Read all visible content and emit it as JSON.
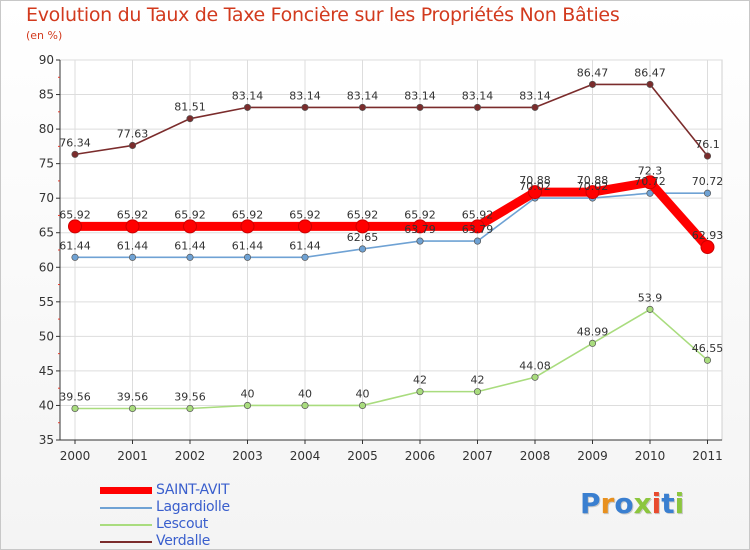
{
  "header": {
    "title": "Evolution du Taux de Taxe Foncière sur les Propriétés Non Bâties",
    "unit": "(en %)"
  },
  "logo": {
    "text": "Proxiti"
  },
  "colors": {
    "saint_avit": "#ff0000",
    "lagardiolle": "#6fa2d4",
    "lescout": "#a9dc7e",
    "verdalle": "#7b2c2c",
    "title": "#d23a1e",
    "legend_text": "#3a5fcd",
    "axis": "#333333"
  },
  "chart_data": {
    "type": "line",
    "title": "Evolution du Taux de Taxe Foncière sur les Propriétés Non Bâties",
    "ylabel": "(en %)",
    "xlabel": "",
    "ylim": [
      35,
      90
    ],
    "yticks": [
      35,
      40,
      45,
      50,
      55,
      60,
      65,
      70,
      75,
      80,
      85,
      90
    ],
    "categories": [
      "2000",
      "2001",
      "2002",
      "2003",
      "2004",
      "2005",
      "2006",
      "2007",
      "2008",
      "2009",
      "2010",
      "2011"
    ],
    "legend_position": "bottom-left",
    "series": [
      {
        "key": "verdalle",
        "name": "Verdalle",
        "color": "#7b2c2c",
        "values": [
          76.34,
          77.63,
          81.51,
          83.14,
          83.14,
          83.14,
          83.14,
          83.14,
          83.14,
          86.47,
          86.47,
          76.1
        ],
        "labels": [
          "76.34",
          "77.63",
          "81.51",
          "83.14",
          "83.14",
          "83.14",
          "83.14",
          "83.14",
          "83.14",
          "86.47",
          "86.47",
          "76.1"
        ]
      },
      {
        "key": "lagardiolle",
        "name": "Lagardiolle",
        "color": "#6fa2d4",
        "values": [
          61.44,
          61.44,
          61.44,
          61.44,
          61.44,
          62.65,
          63.79,
          63.79,
          70.02,
          70.02,
          70.72,
          70.72
        ],
        "labels": [
          "61.44",
          "61.44",
          "61.44",
          "61.44",
          "61.44",
          "62.65",
          "63.79",
          "63.79",
          "70.02",
          "70.02",
          "70.72",
          "70.72"
        ]
      },
      {
        "key": "lescout",
        "name": "Lescout",
        "color": "#a9dc7e",
        "values": [
          39.56,
          39.56,
          39.56,
          40,
          40,
          40,
          42,
          42,
          44.08,
          48.99,
          53.9,
          46.55
        ],
        "labels": [
          "39.56",
          "39.56",
          "39.56",
          "40",
          "40",
          "40",
          "42",
          "42",
          "44.08",
          "48.99",
          "53.9",
          "46.55"
        ]
      },
      {
        "key": "saint_avit",
        "name": "SAINT-AVIT",
        "color": "#ff0000",
        "values": [
          65.92,
          65.92,
          65.92,
          65.92,
          65.92,
          65.92,
          65.92,
          65.92,
          70.88,
          70.88,
          72.3,
          62.93
        ],
        "labels": [
          "65.92",
          "65.92",
          "65.92",
          "65.92",
          "65.92",
          "65.92",
          "65.92",
          "65.92",
          "70.88",
          "70.88",
          "72.3",
          "62.93"
        ]
      }
    ],
    "legend": [
      "SAINT-AVIT",
      "Lagardiolle",
      "Lescout",
      "Verdalle"
    ]
  }
}
